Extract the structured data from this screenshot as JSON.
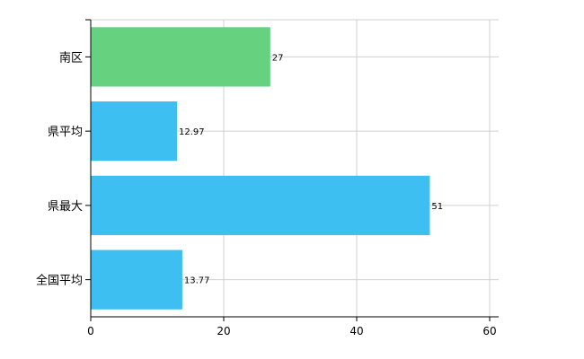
{
  "chart_data": {
    "type": "bar",
    "orientation": "horizontal",
    "categories": [
      "南区",
      "県平均",
      "県最大",
      "全国平均"
    ],
    "values": [
      27,
      12.97,
      51,
      13.77
    ],
    "data_labels": [
      "27",
      "12.97",
      "51",
      "13.77"
    ],
    "colors": [
      "#66d17f",
      "#3dbff2",
      "#3dbff2",
      "#3dbff2"
    ],
    "xlim": [
      0,
      60
    ],
    "xticks": [
      0,
      20,
      40,
      60
    ],
    "xtick_labels": [
      "0",
      "20",
      "40",
      "60"
    ],
    "grid": true,
    "legend": "none"
  }
}
